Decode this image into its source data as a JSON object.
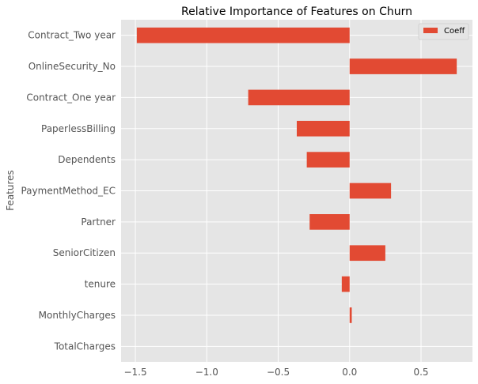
{
  "chart_data": {
    "type": "bar",
    "orientation": "horizontal",
    "title": "Relative Importance of Features on Churn",
    "xlabel": "",
    "ylabel": "Features",
    "categories": [
      "Contract_Two year",
      "OnlineSecurity_No",
      "Contract_One year",
      "PaperlessBilling",
      "Dependents",
      "PaymentMethod_EC",
      "Partner",
      "SeniorCitizen",
      "tenure",
      "MonthlyCharges",
      "TotalCharges"
    ],
    "series": [
      {
        "name": "Coeff",
        "values": [
          -1.49,
          0.75,
          -0.71,
          -0.37,
          -0.3,
          0.29,
          -0.28,
          0.25,
          -0.055,
          0.015,
          0.0
        ]
      }
    ],
    "xlim": [
      -1.6,
      0.86
    ],
    "xticks": [
      -1.5,
      -1.0,
      -0.5,
      0.0,
      0.5
    ],
    "xtick_labels": [
      "−1.5",
      "−1.0",
      "−0.5",
      "0.0",
      "0.5"
    ],
    "grid": true,
    "legend_position": "top-right",
    "colors": {
      "bar": "#E24A33",
      "background": "#E5E5E5",
      "grid": "#FFFFFF",
      "text": "#555555"
    }
  }
}
